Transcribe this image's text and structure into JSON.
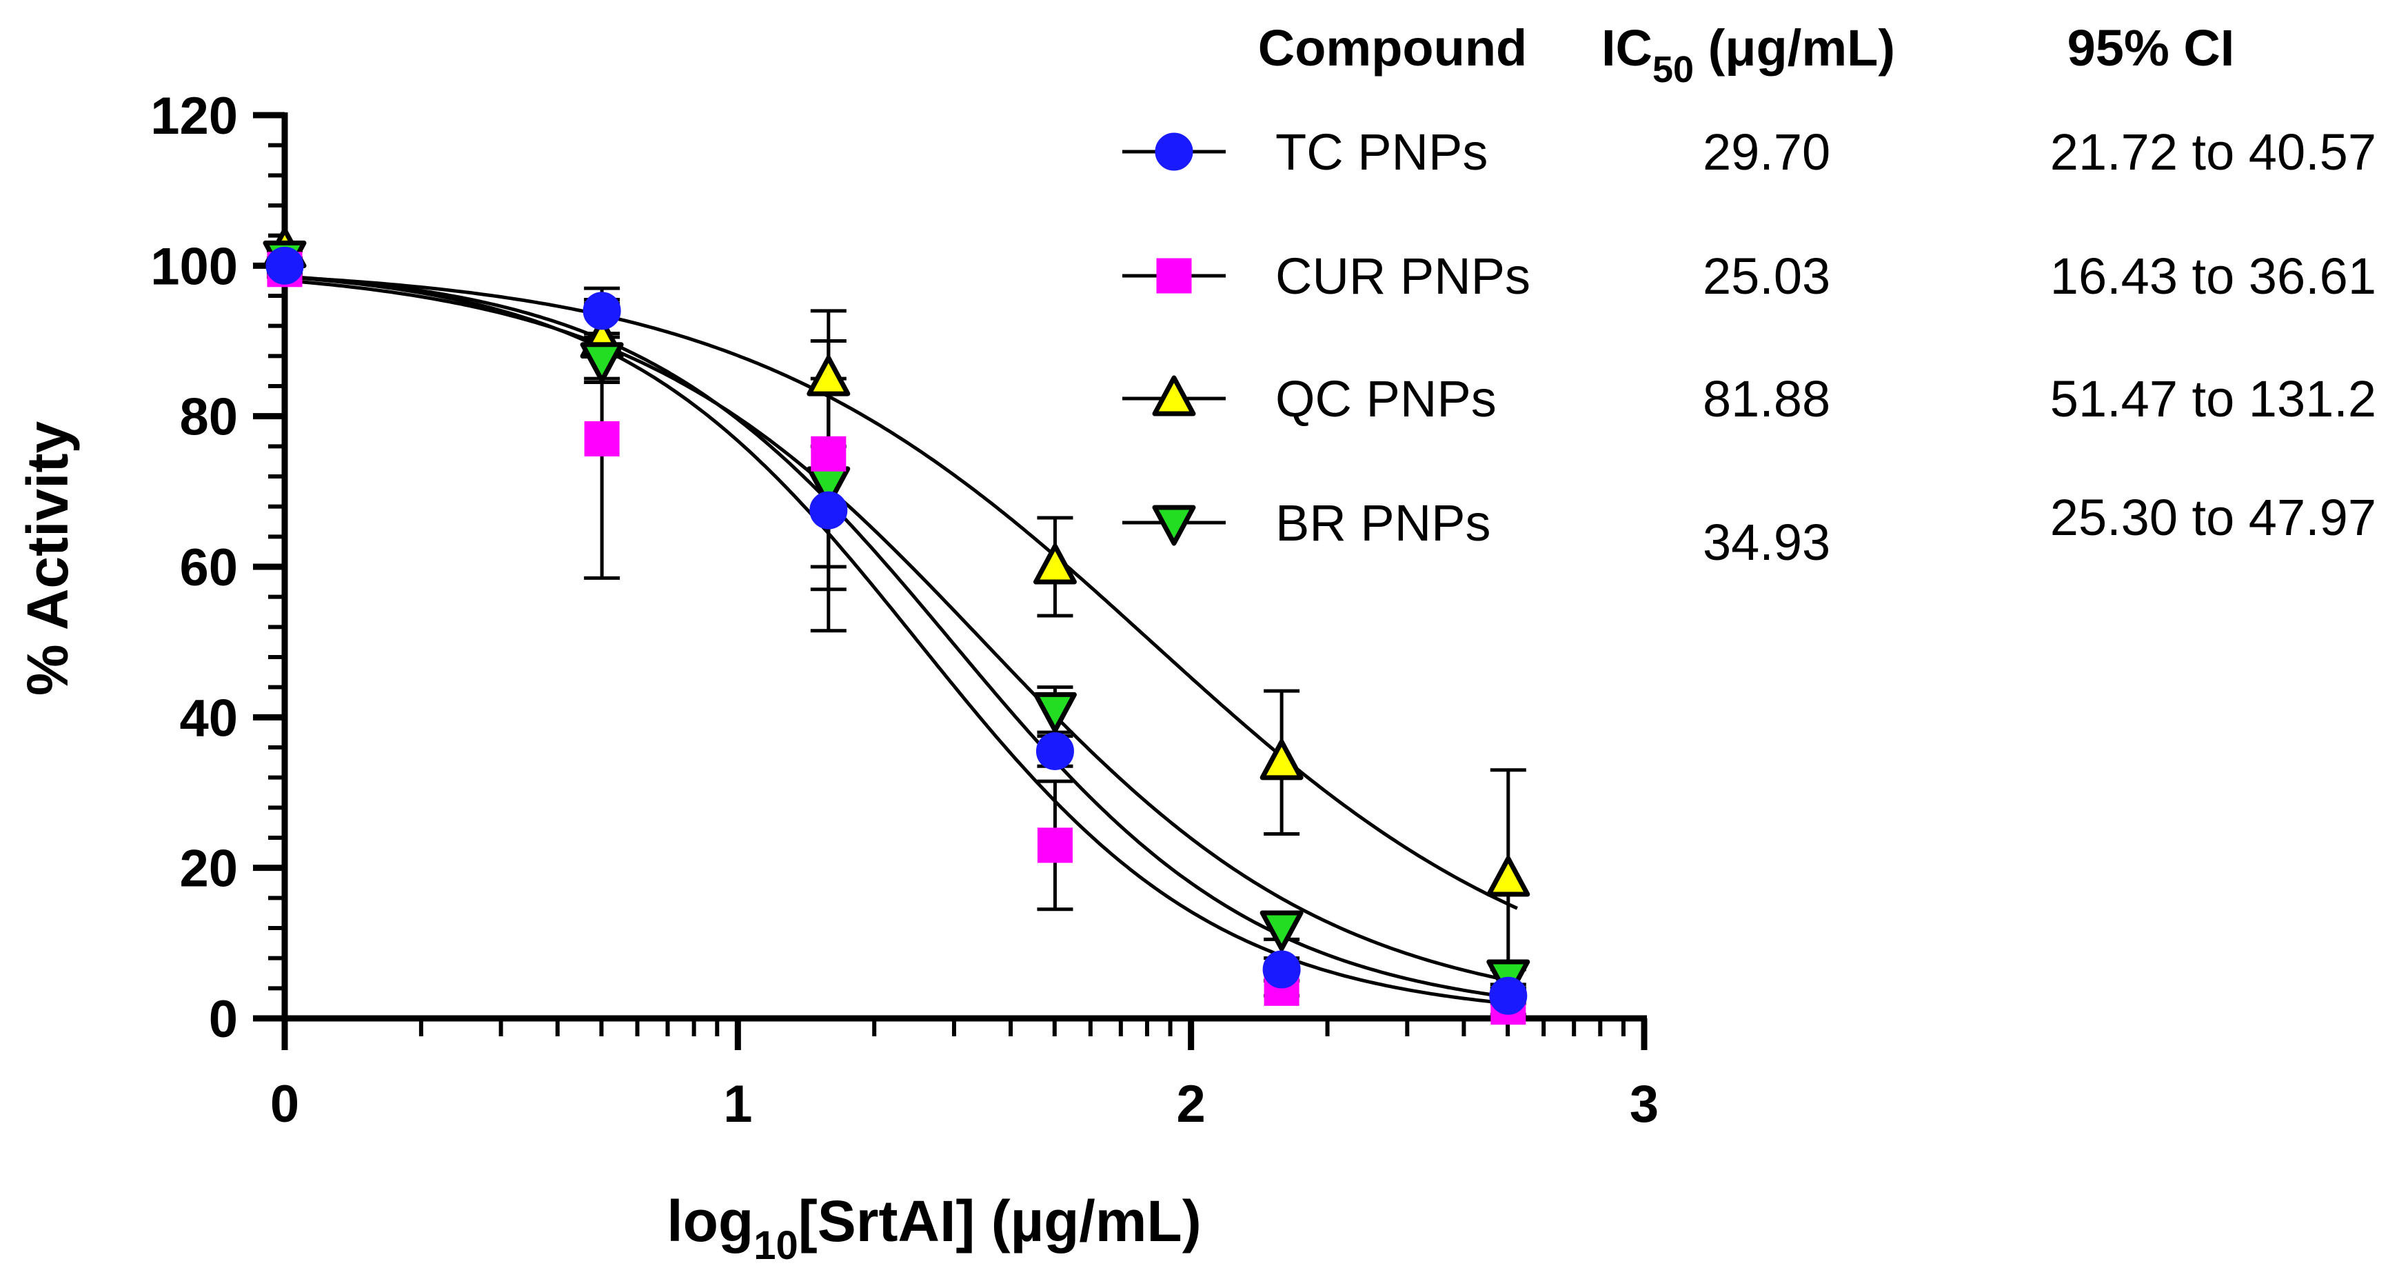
{
  "chart_data": {
    "type": "scatter",
    "title": "",
    "xlabel": "log10[SrtAI] (µg/mL)",
    "ylabel": "% Activity",
    "xlim": [
      0,
      3
    ],
    "ylim": [
      0,
      120
    ],
    "x_ticks": [
      0,
      1,
      2,
      3
    ],
    "y_ticks": [
      0,
      20,
      40,
      60,
      80,
      100,
      120
    ],
    "x_tick_labels": [
      "0",
      "1",
      "2",
      "3"
    ],
    "y_tick_labels": [
      "0",
      "20",
      "40",
      "60",
      "80",
      "100",
      "120"
    ],
    "x_axis_scale": "log-style minor ticks",
    "grid": false,
    "legend_position": "top-right",
    "table_headers": {
      "compound": "Compound",
      "ic50": "IC50 (μg/mL)",
      "ci": "95% CI"
    },
    "series": [
      {
        "name": "TC PNPs",
        "ic50": "29.70",
        "ci": "21.72 to 40.57",
        "ic50_value": 29.7,
        "color": "#1a1aff",
        "edge": "#1a1aff",
        "marker": "circle",
        "x": [
          0,
          0.7,
          1.2,
          1.7,
          2.2,
          2.7
        ],
        "y": [
          100,
          94,
          67.5,
          35.5,
          6.5,
          3
        ],
        "err": [
          1,
          3,
          16,
          2,
          1.5,
          1
        ]
      },
      {
        "name": "CUR PNPs",
        "ic50": "25.03",
        "ci": "16.43 to 36.61",
        "ic50_value": 25.03,
        "color": "#ff00ff",
        "edge": "#ff00ff",
        "marker": "square",
        "x": [
          0,
          0.7,
          1.2,
          1.7,
          2.2,
          2.7
        ],
        "y": [
          99.5,
          77,
          75,
          23,
          4,
          1.5
        ],
        "err": [
          1,
          18.5,
          15,
          8.5,
          1,
          1
        ]
      },
      {
        "name": "QC PNPs",
        "ic50": "81.88",
        "ci": "51.47 to 131.2",
        "ic50_value": 81.88,
        "color": "#ffff00",
        "edge": "#000000",
        "marker": "triangle-up",
        "x": [
          0,
          0.7,
          1.2,
          1.7,
          2.2,
          2.7
        ],
        "y": [
          102,
          90,
          85,
          60,
          34,
          18.5
        ],
        "err": [
          1,
          5,
          9,
          6.5,
          9.5,
          14.5
        ]
      },
      {
        "name": "BR PNPs",
        "ic50": "34.93",
        "ci": "25.30 to 47.97",
        "ic50_value": 34.93,
        "color": "#22dd22",
        "edge": "#000000",
        "marker": "triangle-down",
        "x": [
          0,
          0.7,
          1.2,
          1.7,
          2.2,
          2.7
        ],
        "y": [
          101,
          87.5,
          71,
          41,
          12,
          5.5
        ],
        "err": [
          1,
          3,
          14,
          3,
          1.5,
          1
        ]
      }
    ]
  }
}
